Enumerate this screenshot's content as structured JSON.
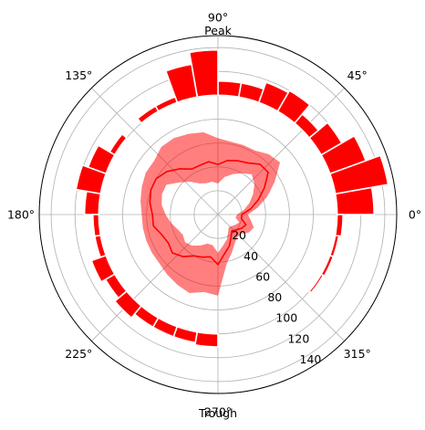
{
  "chart_data": {
    "type": "polar",
    "colors": {
      "accent": "#ff0000",
      "grid": "#b0b0b0",
      "frame": "#000000"
    },
    "angle_ticks": [
      {
        "deg": 0,
        "label": "0$^\\circ$",
        "display": "0°"
      },
      {
        "deg": 45,
        "label": "45$^\\circ$",
        "display": "45°"
      },
      {
        "deg": 90,
        "label": "90$^\\circ$",
        "display": "90°"
      },
      {
        "deg": 135,
        "label": "135$^\\circ$",
        "display": "135°"
      },
      {
        "deg": 180,
        "label": "180$^\\circ$",
        "display": "180°"
      },
      {
        "deg": 225,
        "label": "225$^\\circ$",
        "display": "225°"
      },
      {
        "deg": 270,
        "label": "270$^\\circ$",
        "display": "270°"
      },
      {
        "deg": 315,
        "label": "315$^\\circ$",
        "display": "315°"
      }
    ],
    "annotations": {
      "top": "Peak",
      "bottom": "Trough"
    },
    "radial": {
      "rmin": 0,
      "rmax": 150,
      "ticks": [
        20,
        40,
        60,
        80,
        100,
        120,
        140
      ]
    },
    "grid": true,
    "bars": {
      "base": 100,
      "width_deg": 10,
      "angles_deg": [
        5,
        15,
        25,
        35,
        45,
        55,
        65,
        75,
        85,
        95,
        105,
        115,
        125,
        135,
        145,
        155,
        165,
        175,
        185,
        195,
        205,
        215,
        225,
        235,
        245,
        255,
        265,
        275,
        285,
        295,
        305,
        315,
        325,
        335,
        345,
        355
      ],
      "heights": [
        31,
        45,
        32,
        20,
        10,
        20,
        18,
        12,
        12,
        38,
        28,
        5,
        5,
        0,
        5,
        16,
        21,
        12,
        5,
        5,
        13,
        9,
        13,
        9,
        9,
        9,
        11,
        0,
        0,
        0,
        0,
        0,
        2,
        3,
        3,
        5
      ]
    },
    "line": {
      "angles_deg": [
        0,
        10,
        20,
        30,
        40,
        50,
        60,
        70,
        80,
        90,
        100,
        110,
        120,
        130,
        140,
        150,
        160,
        170,
        180,
        190,
        200,
        210,
        220,
        230,
        240,
        250,
        260,
        270,
        280,
        290,
        300,
        310,
        320,
        330,
        340,
        350,
        360
      ],
      "mean": [
        20,
        28,
        36,
        45,
        55,
        55,
        50,
        48,
        46,
        42,
        45,
        44,
        44,
        50,
        56,
        60,
        60,
        58,
        55,
        55,
        50,
        48,
        50,
        46,
        40,
        38,
        36,
        42,
        33,
        28,
        22,
        18,
        20,
        23,
        25,
        20,
        20
      ],
      "upper": [
        25,
        34,
        44,
        55,
        68,
        66,
        62,
        62,
        62,
        64,
        70,
        72,
        74,
        74,
        70,
        70,
        68,
        66,
        64,
        64,
        64,
        64,
        64,
        66,
        68,
        70,
        66,
        68,
        42,
        34,
        28,
        25,
        25,
        30,
        32,
        28,
        25
      ],
      "lower": [
        16,
        22,
        28,
        34,
        40,
        44,
        40,
        36,
        32,
        26,
        28,
        28,
        30,
        36,
        42,
        50,
        50,
        48,
        44,
        40,
        36,
        34,
        36,
        34,
        30,
        26,
        26,
        32,
        26,
        22,
        17,
        14,
        15,
        17,
        19,
        15,
        16
      ]
    }
  }
}
